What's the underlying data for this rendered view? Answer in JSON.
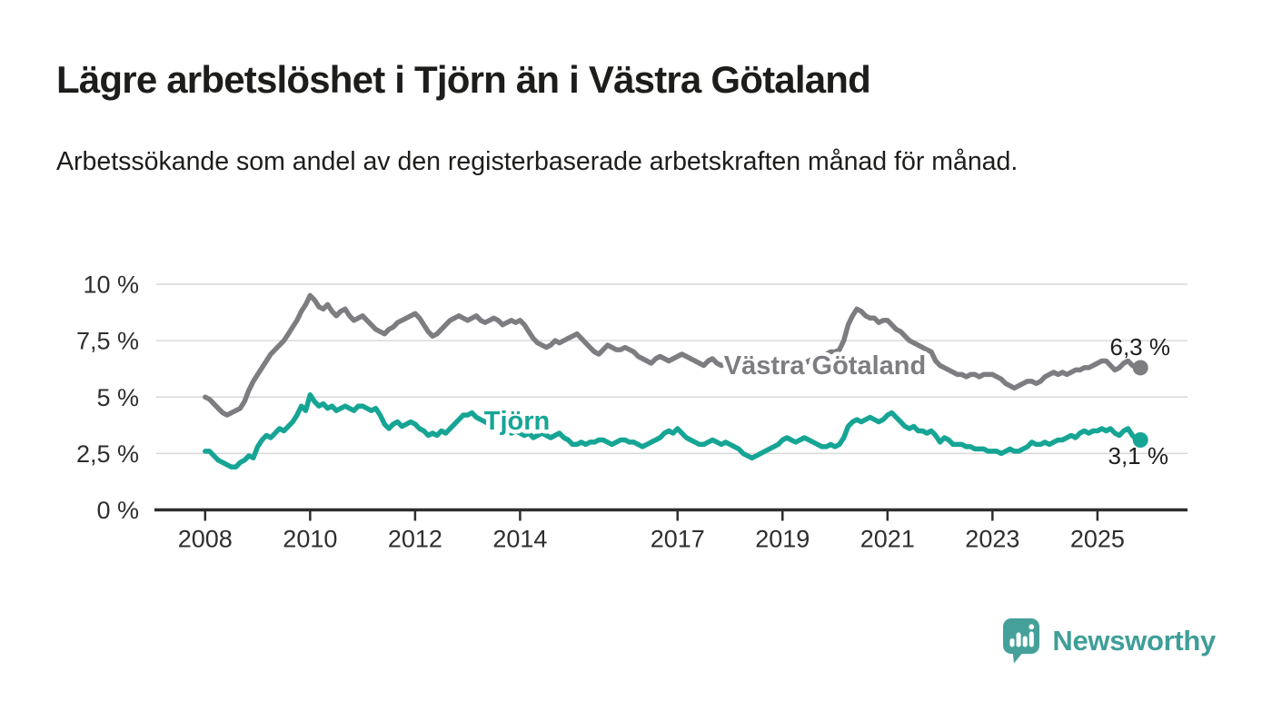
{
  "header": {
    "title": "Lägre arbetslöshet i Tjörn än i Västra Götaland",
    "subtitle": "Arbetssökande som andel av den registerbaserade arbetskraften månad för månad."
  },
  "chart_data": {
    "type": "line",
    "unit": "%",
    "x_start": {
      "year": 2008,
      "month": 1
    },
    "x_end": {
      "year": 2025,
      "month": 10
    },
    "ylim": [
      0,
      10
    ],
    "grid": true,
    "legend_position": "inline-labels",
    "y_ticks": [
      {
        "value": 0,
        "label": "0 %"
      },
      {
        "value": 2.5,
        "label": "2,5 %"
      },
      {
        "value": 5,
        "label": "5 %"
      },
      {
        "value": 7.5,
        "label": "7,5 %"
      },
      {
        "value": 10,
        "label": "10 %"
      }
    ],
    "x_ticks": [
      {
        "value": 2008,
        "label": "2008"
      },
      {
        "value": 2010,
        "label": "2010"
      },
      {
        "value": 2012,
        "label": "2012"
      },
      {
        "value": 2014,
        "label": "2014"
      },
      {
        "value": 2017,
        "label": "2017"
      },
      {
        "value": 2019,
        "label": "2019"
      },
      {
        "value": 2021,
        "label": "2021"
      },
      {
        "value": 2023,
        "label": "2023"
      },
      {
        "value": 2025,
        "label": "2025"
      }
    ],
    "series": [
      {
        "name": "Västra Götaland",
        "color": "#7d7d81",
        "end_label": "6,3 %",
        "end_value": 6.3,
        "values": [
          5.0,
          4.9,
          4.7,
          4.5,
          4.3,
          4.2,
          4.3,
          4.4,
          4.5,
          4.8,
          5.3,
          5.7,
          6.0,
          6.3,
          6.6,
          6.9,
          7.1,
          7.3,
          7.5,
          7.8,
          8.1,
          8.4,
          8.8,
          9.1,
          9.5,
          9.3,
          9.0,
          8.9,
          9.1,
          8.8,
          8.6,
          8.8,
          8.9,
          8.6,
          8.4,
          8.5,
          8.6,
          8.4,
          8.2,
          8.0,
          7.9,
          7.8,
          8.0,
          8.1,
          8.3,
          8.4,
          8.5,
          8.6,
          8.7,
          8.5,
          8.2,
          7.9,
          7.7,
          7.8,
          8.0,
          8.2,
          8.4,
          8.5,
          8.6,
          8.5,
          8.4,
          8.5,
          8.6,
          8.4,
          8.3,
          8.4,
          8.5,
          8.4,
          8.2,
          8.3,
          8.4,
          8.3,
          8.4,
          8.2,
          7.9,
          7.6,
          7.4,
          7.3,
          7.2,
          7.3,
          7.5,
          7.4,
          7.5,
          7.6,
          7.7,
          7.8,
          7.6,
          7.4,
          7.2,
          7.0,
          6.9,
          7.1,
          7.3,
          7.2,
          7.1,
          7.1,
          7.2,
          7.1,
          7.0,
          6.8,
          6.7,
          6.6,
          6.5,
          6.7,
          6.8,
          6.7,
          6.6,
          6.7,
          6.8,
          6.9,
          6.8,
          6.7,
          6.6,
          6.5,
          6.4,
          6.6,
          6.7,
          6.5,
          6.4,
          6.5,
          6.5,
          6.4,
          6.3,
          6.2,
          6.1,
          6.1,
          6.2,
          6.3,
          6.3,
          6.2,
          6.2,
          6.3,
          6.3,
          6.2,
          6.2,
          6.3,
          6.4,
          6.5,
          6.6,
          6.7,
          6.8,
          6.8,
          6.9,
          7.0,
          7.0,
          7.1,
          7.5,
          8.2,
          8.6,
          8.9,
          8.8,
          8.6,
          8.5,
          8.5,
          8.3,
          8.4,
          8.4,
          8.2,
          8.0,
          7.9,
          7.7,
          7.5,
          7.4,
          7.3,
          7.2,
          7.1,
          7.0,
          6.6,
          6.4,
          6.3,
          6.2,
          6.1,
          6.0,
          6.0,
          5.9,
          6.0,
          6.0,
          5.9,
          6.0,
          6.0,
          6.0,
          5.9,
          5.8,
          5.6,
          5.5,
          5.4,
          5.5,
          5.6,
          5.7,
          5.7,
          5.6,
          5.7,
          5.9,
          6.0,
          6.1,
          6.0,
          6.1,
          6.0,
          6.1,
          6.2,
          6.2,
          6.3,
          6.3,
          6.4,
          6.5,
          6.6,
          6.6,
          6.4,
          6.2,
          6.3,
          6.5,
          6.6,
          6.4,
          6.3
        ]
      },
      {
        "name": "Tjörn",
        "color": "#16a595",
        "end_label": "3,1 %",
        "end_value": 3.1,
        "values": [
          2.6,
          2.6,
          2.4,
          2.2,
          2.1,
          2.0,
          1.9,
          1.9,
          2.1,
          2.2,
          2.4,
          2.3,
          2.8,
          3.1,
          3.3,
          3.2,
          3.4,
          3.6,
          3.5,
          3.7,
          3.9,
          4.2,
          4.6,
          4.4,
          5.1,
          4.8,
          4.6,
          4.7,
          4.5,
          4.6,
          4.4,
          4.5,
          4.6,
          4.5,
          4.4,
          4.6,
          4.6,
          4.5,
          4.4,
          4.5,
          4.2,
          3.8,
          3.6,
          3.8,
          3.9,
          3.7,
          3.8,
          3.9,
          3.8,
          3.6,
          3.5,
          3.3,
          3.4,
          3.3,
          3.5,
          3.4,
          3.6,
          3.8,
          4.0,
          4.2,
          4.2,
          4.3,
          4.1,
          4.0,
          3.9,
          3.8,
          3.7,
          3.6,
          3.6,
          3.5,
          3.4,
          3.5,
          3.4,
          3.3,
          3.4,
          3.2,
          3.3,
          3.4,
          3.3,
          3.2,
          3.3,
          3.4,
          3.2,
          3.1,
          2.9,
          2.9,
          3.0,
          2.9,
          3.0,
          3.0,
          3.1,
          3.1,
          3.0,
          2.9,
          3.0,
          3.1,
          3.1,
          3.0,
          3.0,
          2.9,
          2.8,
          2.9,
          3.0,
          3.1,
          3.2,
          3.4,
          3.5,
          3.4,
          3.6,
          3.4,
          3.2,
          3.1,
          3.0,
          2.9,
          2.9,
          3.0,
          3.1,
          3.0,
          2.9,
          3.0,
          2.9,
          2.8,
          2.7,
          2.5,
          2.4,
          2.3,
          2.4,
          2.5,
          2.6,
          2.7,
          2.8,
          2.9,
          3.1,
          3.2,
          3.1,
          3.0,
          3.1,
          3.2,
          3.1,
          3.0,
          2.9,
          2.8,
          2.8,
          2.9,
          2.8,
          2.9,
          3.2,
          3.7,
          3.9,
          4.0,
          3.9,
          4.0,
          4.1,
          4.0,
          3.9,
          4.0,
          4.2,
          4.3,
          4.1,
          3.9,
          3.7,
          3.6,
          3.7,
          3.5,
          3.5,
          3.4,
          3.5,
          3.3,
          3.0,
          3.2,
          3.1,
          2.9,
          2.9,
          2.9,
          2.8,
          2.8,
          2.7,
          2.7,
          2.7,
          2.6,
          2.6,
          2.6,
          2.5,
          2.6,
          2.7,
          2.6,
          2.6,
          2.7,
          2.8,
          3.0,
          2.9,
          2.9,
          3.0,
          2.9,
          3.0,
          3.1,
          3.1,
          3.2,
          3.3,
          3.2,
          3.4,
          3.5,
          3.4,
          3.5,
          3.5,
          3.6,
          3.5,
          3.6,
          3.4,
          3.3,
          3.5,
          3.6,
          3.3,
          3.1
        ]
      }
    ]
  },
  "footer": {
    "brand": "Newsworthy",
    "brand_color": "#3f9e99"
  }
}
